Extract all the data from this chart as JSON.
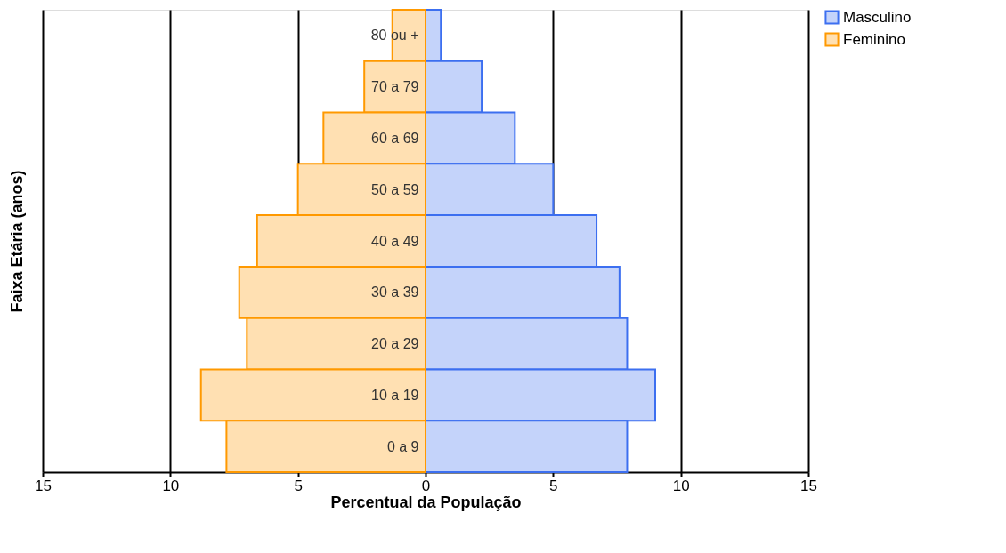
{
  "chart_data": {
    "type": "bar",
    "orientation": "horizontal",
    "xlabel": "Percentual da População",
    "ylabel": "Faixa Etária (anos)",
    "categories": [
      "80 ou +",
      "70 a 79",
      "60 a 69",
      "50 a 59",
      "40 a 49",
      "30 a 39",
      "20 a 29",
      "10 a 19",
      "0 a 9"
    ],
    "series": [
      {
        "name": "Masculino",
        "color": "#3c6ff0",
        "values": [
          0.6,
          2.2,
          3.5,
          5.0,
          6.7,
          7.6,
          7.9,
          9.0,
          7.9
        ]
      },
      {
        "name": "Feminino",
        "color": "#ff9900",
        "values": [
          -1.3,
          -2.4,
          -4.0,
          -5.0,
          -6.6,
          -7.3,
          -7.0,
          -8.8,
          -7.8
        ]
      }
    ],
    "xlim": [
      -15,
      15
    ],
    "xticks": [
      {
        "value": -15,
        "label": "15"
      },
      {
        "value": -10,
        "label": "10"
      },
      {
        "value": -5,
        "label": "5"
      },
      0,
      5,
      10,
      15
    ],
    "grid": "x",
    "legend": "right",
    "stacked": true
  }
}
